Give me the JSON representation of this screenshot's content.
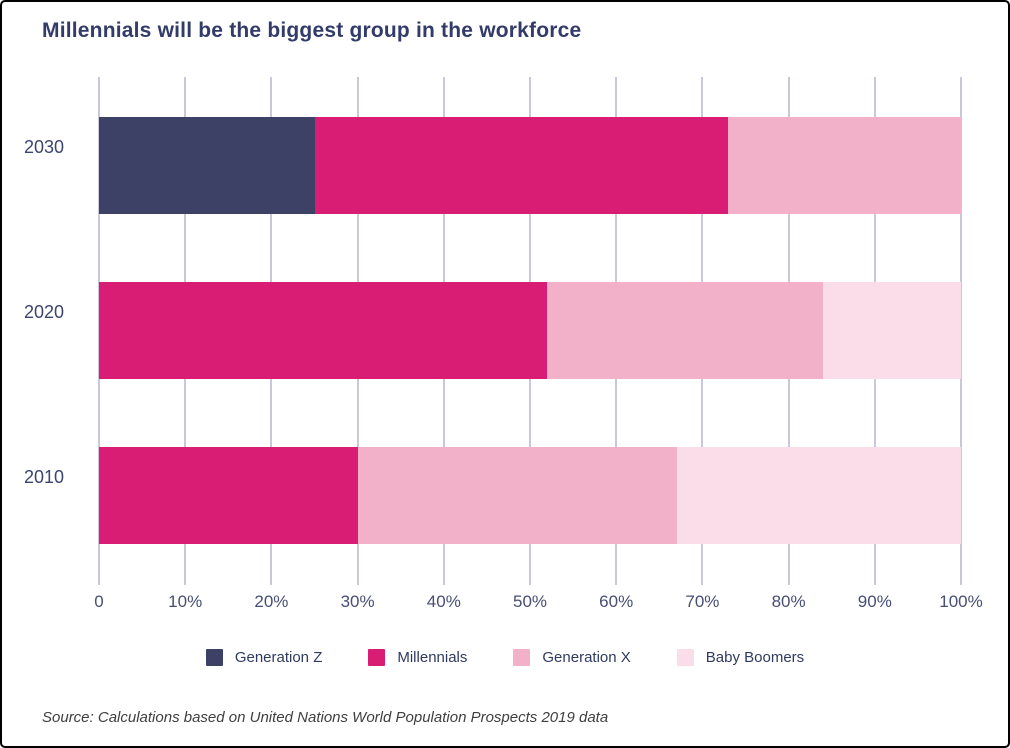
{
  "source_note": "Source: Calculations based on United Nations World Population Prospects 2019 data",
  "chart_data": {
    "type": "bar",
    "orientation": "horizontal",
    "stacked": true,
    "title": "Millennials will be the biggest group in the workforce",
    "xlabel": "",
    "ylabel": "",
    "xlim": [
      0,
      100
    ],
    "grid": true,
    "grid_color": "#c9c8da",
    "background": "#ffffff",
    "title_color": "#333b69",
    "legend_position": "bottom",
    "categories": [
      "2030",
      "2020",
      "2010"
    ],
    "series": [
      {
        "name": "Generation Z",
        "color": "#3e4166",
        "values": [
          25,
          0,
          0
        ]
      },
      {
        "name": "Millennials",
        "color": "#d91d74",
        "values": [
          48,
          52,
          30
        ]
      },
      {
        "name": "Generation X",
        "color": "#f2b1c8",
        "values": [
          27,
          32,
          37
        ]
      },
      {
        "name": "Baby Boomers",
        "color": "#fadde9",
        "values": [
          0,
          16,
          33
        ]
      }
    ],
    "x_ticks": [
      {
        "value": 0,
        "label": "0"
      },
      {
        "value": 10,
        "label": "10%"
      },
      {
        "value": 20,
        "label": "20%"
      },
      {
        "value": 30,
        "label": "30%"
      },
      {
        "value": 40,
        "label": "40%"
      },
      {
        "value": 50,
        "label": "50%"
      },
      {
        "value": 60,
        "label": "60%"
      },
      {
        "value": 70,
        "label": "70%"
      },
      {
        "value": 80,
        "label": "80%"
      },
      {
        "value": 90,
        "label": "90%"
      },
      {
        "value": 100,
        "label": "100%"
      }
    ]
  }
}
